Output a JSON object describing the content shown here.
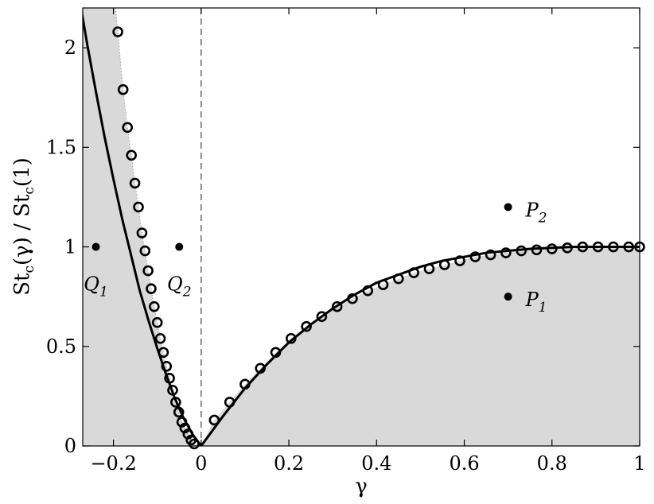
{
  "chart_data": {
    "type": "scatter",
    "title": "",
    "xlabel": "γ",
    "ylabel": "St_c(γ) / St_c(1)",
    "xlim": [
      -0.27,
      1.0
    ],
    "ylim": [
      0,
      2.2
    ],
    "grid": false,
    "legend": "none",
    "x_ticks": [
      {
        "value": -0.2,
        "label": "−0.2"
      },
      {
        "value": 0,
        "label": "0"
      },
      {
        "value": 0.2,
        "label": "0.2"
      },
      {
        "value": 0.4,
        "label": "0.4"
      },
      {
        "value": 0.6,
        "label": "0.6"
      },
      {
        "value": 0.8,
        "label": "0.8"
      },
      {
        "value": 1,
        "label": "1"
      }
    ],
    "y_ticks": [
      {
        "value": 0,
        "label": "0"
      },
      {
        "value": 0.5,
        "label": "0.5"
      },
      {
        "value": 1,
        "label": "1"
      },
      {
        "value": 1.5,
        "label": "1.5"
      },
      {
        "value": 2,
        "label": "2"
      }
    ],
    "dashed_vertical_line_x": 0,
    "colors": {
      "shaded_region": "#d9d9d9",
      "line": "#000000",
      "markers": "#000000"
    },
    "series": [
      {
        "style": "solid-line",
        "x": [
          -0.28,
          -0.26,
          -0.24,
          -0.22,
          -0.2,
          -0.18,
          -0.16,
          -0.14,
          -0.12,
          -0.1,
          -0.08,
          -0.06,
          -0.04,
          -0.02,
          0.0,
          0.02,
          0.05,
          0.1,
          0.15,
          0.2,
          0.25,
          0.3,
          0.35,
          0.4,
          0.45,
          0.5,
          0.55,
          0.6,
          0.65,
          0.7,
          0.75,
          0.8,
          0.85,
          0.9,
          0.95,
          1.0
        ],
        "y": [
          2.28,
          2.02,
          1.78,
          1.55,
          1.34,
          1.14,
          0.96,
          0.78,
          0.63,
          0.49,
          0.36,
          0.24,
          0.14,
          0.06,
          0.0,
          0.06,
          0.15,
          0.29,
          0.41,
          0.52,
          0.61,
          0.69,
          0.76,
          0.82,
          0.86,
          0.9,
          0.93,
          0.95,
          0.97,
          0.98,
          0.99,
          0.995,
          1.0,
          1.0,
          1.0,
          1.0
        ]
      },
      {
        "style": "open-circles",
        "x": [
          -0.19,
          -0.178,
          -0.168,
          -0.159,
          -0.151,
          -0.143,
          -0.135,
          -0.128,
          -0.121,
          -0.114,
          -0.107,
          -0.1,
          -0.093,
          -0.086,
          -0.079,
          -0.072,
          -0.065,
          -0.058,
          -0.051,
          -0.044,
          -0.037,
          -0.03,
          -0.023,
          -0.016,
          0.03,
          0.065,
          0.1,
          0.135,
          0.17,
          0.205,
          0.24,
          0.275,
          0.31,
          0.345,
          0.38,
          0.415,
          0.45,
          0.485,
          0.52,
          0.555,
          0.59,
          0.625,
          0.66,
          0.695,
          0.73,
          0.765,
          0.8,
          0.835,
          0.87,
          0.905,
          0.94,
          0.975,
          1.0
        ],
        "y": [
          2.08,
          1.79,
          1.6,
          1.46,
          1.32,
          1.2,
          1.07,
          0.98,
          0.88,
          0.79,
          0.7,
          0.62,
          0.54,
          0.47,
          0.4,
          0.34,
          0.28,
          0.22,
          0.17,
          0.12,
          0.09,
          0.06,
          0.03,
          0.01,
          0.13,
          0.22,
          0.31,
          0.39,
          0.47,
          0.54,
          0.6,
          0.65,
          0.7,
          0.74,
          0.78,
          0.81,
          0.84,
          0.87,
          0.89,
          0.91,
          0.93,
          0.95,
          0.96,
          0.97,
          0.98,
          0.985,
          0.99,
          0.995,
          1.0,
          1.0,
          1.0,
          1.0,
          1.0
        ]
      }
    ],
    "points": [
      {
        "name": "Q",
        "sub": "1",
        "x": -0.24,
        "y": 1.0
      },
      {
        "name": "Q",
        "sub": "2",
        "x": -0.05,
        "y": 1.0
      },
      {
        "name": "P",
        "sub": "2",
        "x": 0.7,
        "y": 1.2
      },
      {
        "name": "P",
        "sub": "1",
        "x": 0.7,
        "y": 0.75
      }
    ]
  }
}
